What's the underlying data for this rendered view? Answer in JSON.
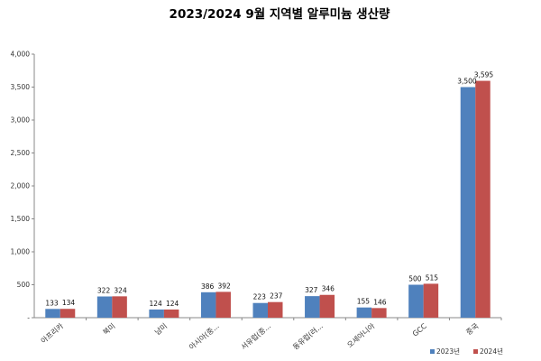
{
  "chart_data": {
    "type": "bar",
    "title": "2023/2024 9월 지역별 알루미늄 생산량",
    "xlabel": "",
    "ylabel": "",
    "categories": [
      "아프리카",
      "북미",
      "남미",
      "아시아(중...",
      "서유럽(중...",
      "동유럽(러...",
      "오세아니아",
      "GCC",
      "중국"
    ],
    "series": [
      {
        "name": "2023년",
        "values": [
          133,
          322,
          124,
          386,
          223,
          327,
          155,
          500,
          3500
        ],
        "color": "#4F81BD"
      },
      {
        "name": "2024년",
        "values": [
          134,
          324,
          124,
          392,
          237,
          346,
          146,
          515,
          3595
        ],
        "color": "#C0504D"
      }
    ],
    "data_labels": [
      [
        "133",
        "322",
        "124",
        "386",
        "223",
        "327",
        "155",
        "500",
        "3,500"
      ],
      [
        "134",
        "324",
        "124",
        "392",
        "237",
        "346",
        "146",
        "515",
        "3,595"
      ]
    ],
    "ylim": [
      0,
      4000
    ],
    "y_ticks": [
      0,
      500,
      1000,
      1500,
      2000,
      2500,
      3000,
      3500,
      4000
    ],
    "y_tick_labels": [
      "-",
      "500",
      "1,000",
      "1,500",
      "2,000",
      "2,500",
      "3,000",
      "3,500",
      "4,000"
    ],
    "grid": false,
    "legend_position": "bottom-right"
  }
}
